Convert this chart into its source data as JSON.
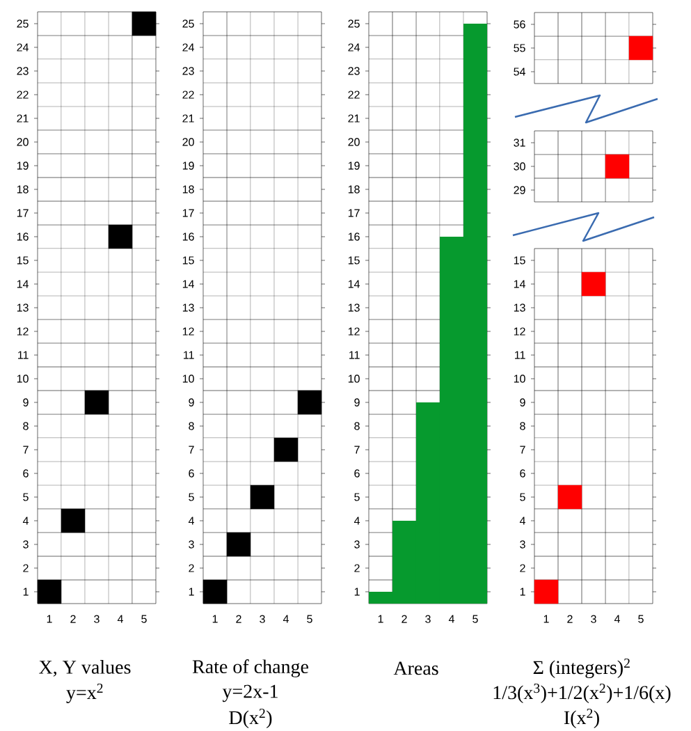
{
  "chart_data": [
    {
      "type": "scatter",
      "title": "X, Y values",
      "subtitle": "y=x$^{2}$",
      "categories": [
        "1",
        "2",
        "3",
        "4",
        "5"
      ],
      "values": [
        1,
        4,
        9,
        16,
        25
      ],
      "color": "#000000",
      "marker": "square",
      "ylim": [
        0.5,
        25.5
      ],
      "yticks": [
        1,
        2,
        3,
        4,
        5,
        6,
        7,
        8,
        9,
        10,
        11,
        12,
        13,
        14,
        15,
        16,
        17,
        18,
        19,
        20,
        21,
        22,
        23,
        24,
        25
      ],
      "grid": true
    },
    {
      "type": "scatter",
      "title": "Rate of change",
      "subtitle": "y=2x-1",
      "annotations": [
        "D(x$^{2}$)"
      ],
      "categories": [
        "1",
        "2",
        "3",
        "4",
        "5"
      ],
      "values": [
        1,
        3,
        5,
        7,
        9
      ],
      "color": "#000000",
      "marker": "square",
      "ylim": [
        0.5,
        25.5
      ],
      "yticks": [
        1,
        2,
        3,
        4,
        5,
        6,
        7,
        8,
        9,
        10,
        11,
        12,
        13,
        14,
        15,
        16,
        17,
        18,
        19,
        20,
        21,
        22,
        23,
        24,
        25
      ],
      "grid": true
    },
    {
      "type": "bar",
      "title": "Areas",
      "categories": [
        "1",
        "2",
        "3",
        "4",
        "5"
      ],
      "values": [
        1,
        4,
        9,
        16,
        25
      ],
      "color": "#069a2e",
      "ylim": [
        0.5,
        25.5
      ],
      "yticks": [
        1,
        2,
        3,
        4,
        5,
        6,
        7,
        8,
        9,
        10,
        11,
        12,
        13,
        14,
        15,
        16,
        17,
        18,
        19,
        20,
        21,
        22,
        23,
        24,
        25
      ],
      "grid": true
    },
    {
      "type": "scatter",
      "categories": [
        "1",
        "2",
        "3",
        "4",
        "5"
      ],
      "values": [
        null,
        null,
        null,
        null,
        55
      ],
      "color": "#ff0000",
      "marker": "square",
      "ylim": [
        53.5,
        56.5
      ],
      "yticks": [
        54,
        55,
        56
      ],
      "grid": true,
      "tick_labels": "y"
    },
    {
      "type": "scatter",
      "categories": [
        "1",
        "2",
        "3",
        "4",
        "5"
      ],
      "values": [
        null,
        null,
        null,
        30,
        null
      ],
      "color": "#ff0000",
      "marker": "square",
      "ylim": [
        28.5,
        31.5
      ],
      "yticks": [
        29,
        30,
        31
      ],
      "grid": true,
      "tick_labels": "y"
    },
    {
      "type": "scatter",
      "title": "Σ (integers)$^{2}$",
      "subtitle": "1/3(x$^{3}$)+1/2(x$^{2}$)+1/6(x)",
      "annotations": [
        "I(x$^{2}$)"
      ],
      "categories": [
        "1",
        "2",
        "3",
        "4",
        "5"
      ],
      "values": [
        1,
        5,
        14,
        null,
        null
      ],
      "color": "#ff0000",
      "marker": "square",
      "ylim": [
        0.5,
        15.5
      ],
      "yticks": [
        1,
        2,
        3,
        4,
        5,
        6,
        7,
        8,
        9,
        10,
        11,
        12,
        13,
        14,
        15
      ],
      "grid": true
    }
  ]
}
